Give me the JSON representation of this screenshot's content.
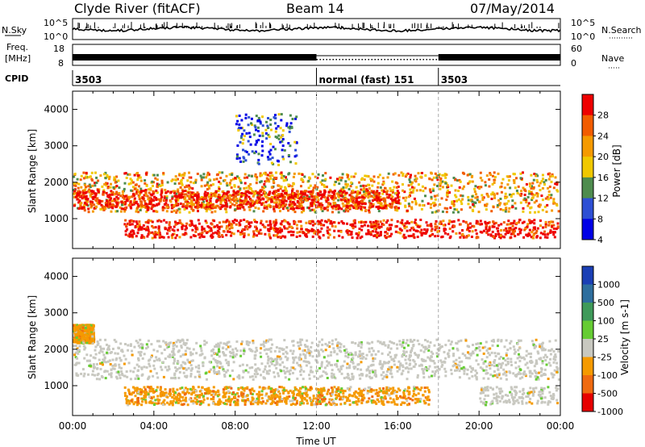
{
  "header": {
    "station": "Clyde River (fitACF)",
    "beam": "Beam 14",
    "date": "07/May/2014"
  },
  "strips": {
    "nsky_label": "N.Sky",
    "nsky_ticks": [
      "10^5",
      "10^0"
    ],
    "nsearch_label": "N.Search",
    "nsearch_ticks": [
      "10^5",
      "10^0"
    ],
    "freq_label_1": "Freq.",
    "freq_label_2": "[MHz]",
    "freq_ticks": [
      "18",
      "8"
    ],
    "nave_label": "Nave",
    "nave_ticks": [
      "60",
      "0"
    ],
    "cpid_label": "CPID",
    "cpid_segments": [
      {
        "start_hour": 0,
        "end_hour": 12,
        "label": "3503"
      },
      {
        "start_hour": 12,
        "end_hour": 18,
        "label": "normal (fast)  151"
      },
      {
        "start_hour": 18,
        "end_hour": 24,
        "label": "3503"
      }
    ]
  },
  "chart_data": [
    {
      "type": "heatmap",
      "panel": "power",
      "ylabel": "Slant Range [km]",
      "xlabel": "",
      "x_range_hours": [
        0,
        24
      ],
      "ylim": [
        180,
        4500
      ],
      "y_ticks": [
        1000,
        2000,
        3000,
        4000
      ],
      "colorbar_label": "Power [dB]",
      "colorbar_ticks": [
        "28",
        "24",
        "20",
        "16",
        "12",
        "8",
        "4"
      ],
      "colorbar_colors": [
        "#ee0000",
        "#f25c00",
        "#f59a00",
        "#f0c800",
        "#4e8c4e",
        "#2e4fd4",
        "#0000e6"
      ],
      "scatter_bands": [
        {
          "range_km": [
            1200,
            2300
          ],
          "hours": [
            0,
            24
          ],
          "dominant_db": 20
        },
        {
          "range_km": [
            1300,
            1800
          ],
          "hours": [
            0,
            16
          ],
          "dominant_db": 28
        },
        {
          "range_km": [
            500,
            1000
          ],
          "hours": [
            2.5,
            24
          ],
          "dominant_db": 28
        },
        {
          "range_km": [
            2500,
            3900
          ],
          "hours": [
            8,
            11
          ],
          "dominant_db": 8
        }
      ]
    },
    {
      "type": "heatmap",
      "panel": "velocity",
      "ylabel": "Slant Range [km]",
      "xlabel": "Time UT",
      "x_range_hours": [
        0,
        24
      ],
      "x_tick_labels": [
        "00:00",
        "04:00",
        "08:00",
        "12:00",
        "16:00",
        "20:00",
        "00:00"
      ],
      "ylim": [
        180,
        4500
      ],
      "y_ticks": [
        1000,
        2000,
        3000,
        4000
      ],
      "colorbar_label": "Velocity [m s-1]",
      "colorbar_ticks": [
        "1000",
        "500",
        "100",
        "25",
        "-25",
        "-100",
        "-500",
        "-1000"
      ],
      "colorbar_colors": [
        "#1a3fb5",
        "#2e6e9e",
        "#3f9a5a",
        "#66cc33",
        "#c8c8c0",
        "#f59a00",
        "#ef6a10",
        "#e60000"
      ],
      "scatter_bands": [
        {
          "range_km": [
            1200,
            2300
          ],
          "hours": [
            0,
            24
          ],
          "dominant_velocity": 0
        },
        {
          "range_km": [
            500,
            1000
          ],
          "hours": [
            2.5,
            17.5
          ],
          "dominant_velocity": -300
        },
        {
          "range_km": [
            2200,
            2700
          ],
          "hours": [
            0,
            1
          ],
          "dominant_velocity": -300
        },
        {
          "range_km": [
            500,
            1000
          ],
          "hours": [
            20,
            24
          ],
          "dominant_velocity": 0
        }
      ]
    }
  ],
  "colors": {
    "axis": "#000000",
    "background": "#ffffff",
    "divider": "#aaaaaa"
  }
}
